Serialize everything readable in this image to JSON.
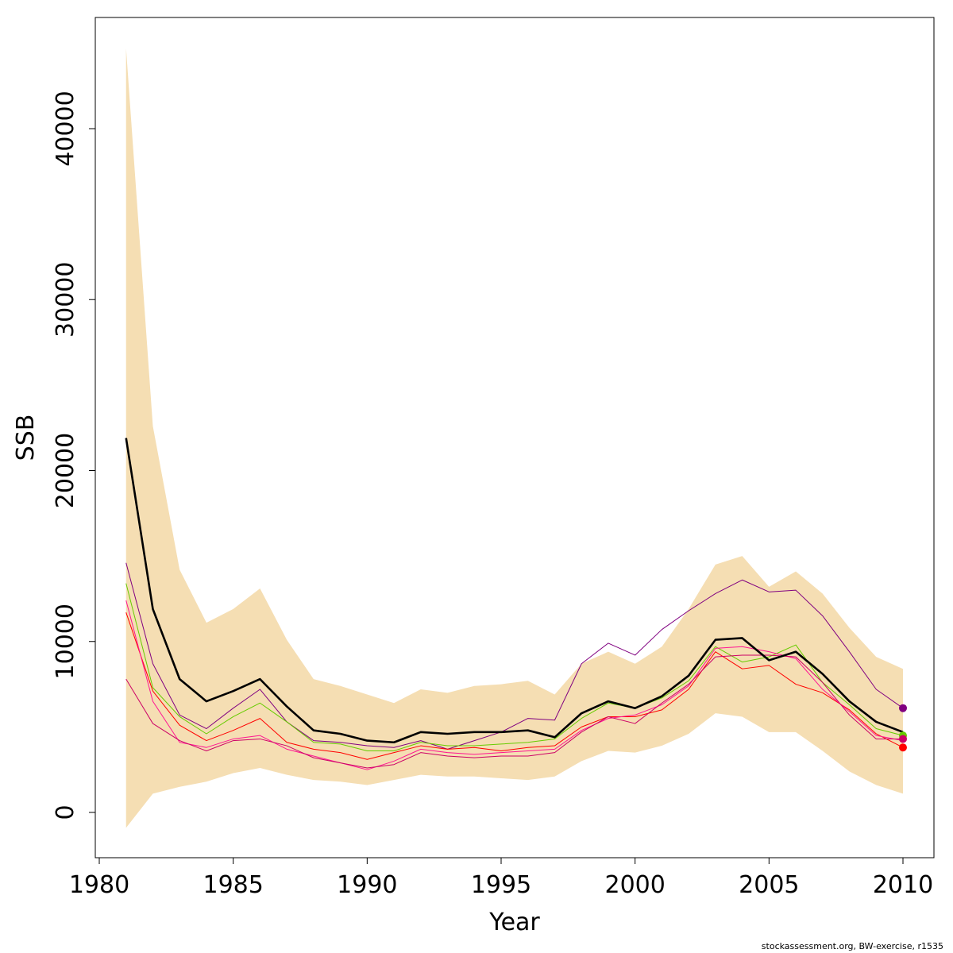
{
  "chart_data": {
    "type": "line",
    "xlabel": "Year",
    "ylabel": "SSB",
    "xlim": [
      1980,
      2010
    ],
    "ylim": [
      0,
      40000
    ],
    "xticks": [
      1980,
      1985,
      1990,
      1995,
      2000,
      2005,
      2010
    ],
    "yticks": [
      0,
      10000,
      20000,
      30000,
      40000
    ],
    "x": [
      1981,
      1982,
      1983,
      1984,
      1985,
      1986,
      1987,
      1988,
      1989,
      1990,
      1991,
      1992,
      1993,
      1994,
      1995,
      1996,
      1997,
      1998,
      1999,
      2000,
      2001,
      2002,
      2003,
      2004,
      2005,
      2006,
      2007,
      2008,
      2009,
      2010
    ],
    "band": {
      "color": "#f5deb3",
      "upper": [
        44700,
        22600,
        14200,
        11100,
        11900,
        13100,
        10100,
        7800,
        7400,
        6900,
        6400,
        7200,
        7000,
        7400,
        7500,
        7700,
        6900,
        8700,
        9400,
        8700,
        9700,
        11900,
        14500,
        15000,
        13200,
        14100,
        12800,
        10800,
        9100,
        8400
      ],
      "lower": [
        -900,
        1100,
        1500,
        1800,
        2300,
        2600,
        2200,
        1900,
        1800,
        1600,
        1900,
        2200,
        2100,
        2100,
        2000,
        1900,
        2100,
        3000,
        3600,
        3500,
        3900,
        4600,
        5800,
        5600,
        4700,
        4700,
        3600,
        2400,
        1600,
        1100
      ]
    },
    "series": [
      {
        "color": "#000000",
        "width": 2.6,
        "values": [
          21900,
          11900,
          7800,
          6500,
          7100,
          7800,
          6200,
          4800,
          4600,
          4200,
          4100,
          4700,
          4600,
          4700,
          4700,
          4800,
          4400,
          5800,
          6500,
          6100,
          6800,
          8000,
          10100,
          10200,
          8900,
          9400,
          8100,
          6500,
          5300,
          4700
        ]
      },
      {
        "color": "#800080",
        "width": 1,
        "values": [
          14600,
          8700,
          5700,
          4900,
          6100,
          7200,
          5300,
          4200,
          4100,
          3900,
          3800,
          4200,
          3700,
          4200,
          4700,
          5500,
          5400,
          8700,
          9900,
          9200,
          10700,
          11800,
          12800,
          13600,
          12900,
          13000,
          11500,
          9400,
          7200,
          6100
        ],
        "endpoint": true
      },
      {
        "color": "#66cc00",
        "width": 1,
        "values": [
          13400,
          7300,
          5600,
          4600,
          5600,
          6400,
          5300,
          4100,
          4000,
          3600,
          3600,
          4100,
          3900,
          3900,
          4000,
          4100,
          4300,
          5500,
          6400,
          6100,
          6700,
          7700,
          9700,
          8800,
          9100,
          9800,
          7600,
          6300,
          4900,
          4500
        ],
        "endpoint": true
      },
      {
        "color": "#ff0000",
        "width": 1,
        "values": [
          11700,
          7100,
          5100,
          4200,
          4800,
          5500,
          4100,
          3700,
          3500,
          3100,
          3500,
          3900,
          3700,
          3800,
          3600,
          3800,
          3900,
          5000,
          5600,
          5600,
          6000,
          7200,
          9400,
          8400,
          8600,
          7500,
          7000,
          6000,
          4600,
          3800
        ],
        "endpoint": true
      },
      {
        "color": "#ff1493",
        "width": 1,
        "values": [
          12400,
          6500,
          4100,
          3800,
          4300,
          4500,
          3700,
          3300,
          2900,
          2500,
          3000,
          3700,
          3500,
          3400,
          3500,
          3600,
          3700,
          4800,
          5500,
          5700,
          6300,
          7400,
          9600,
          9700,
          9400,
          9000,
          7200,
          5900,
          4500,
          4200
        ]
      },
      {
        "color": "#cc0066",
        "width": 1,
        "values": [
          7800,
          5200,
          4200,
          3600,
          4200,
          4300,
          3900,
          3200,
          2900,
          2600,
          2800,
          3500,
          3300,
          3200,
          3300,
          3300,
          3500,
          4700,
          5600,
          5200,
          6400,
          7500,
          9100,
          9200,
          9200,
          9100,
          7600,
          5700,
          4300,
          4300
        ],
        "endpoint": true
      }
    ]
  },
  "footer": {
    "credit": "stockassessment.org, BW-exercise, r1535"
  }
}
